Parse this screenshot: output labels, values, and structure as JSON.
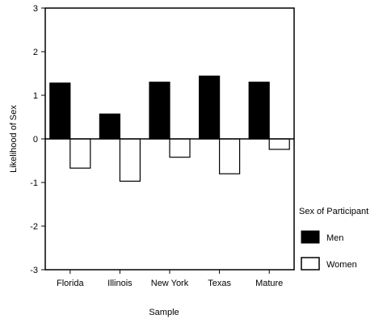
{
  "chart_data": {
    "type": "bar",
    "title": "",
    "xlabel": "Sample",
    "ylabel": "Likelihood of Sex",
    "ylim": [
      -3,
      3
    ],
    "yticks": [
      "-3",
      "-2",
      "-1",
      "0",
      "1",
      "2",
      "3"
    ],
    "categories": [
      "Florida",
      "Illinois",
      "New York",
      "Texas",
      "Mature"
    ],
    "series": [
      {
        "name": "Men",
        "values": [
          1.28,
          0.57,
          1.3,
          1.44,
          1.3
        ],
        "fill": "#000000"
      },
      {
        "name": "Women",
        "values": [
          -0.67,
          -0.97,
          -0.42,
          -0.8,
          -0.24
        ],
        "fill": "#ffffff"
      }
    ],
    "legend": {
      "title": "Sex of Participant",
      "placement": "right"
    },
    "grid": false
  }
}
